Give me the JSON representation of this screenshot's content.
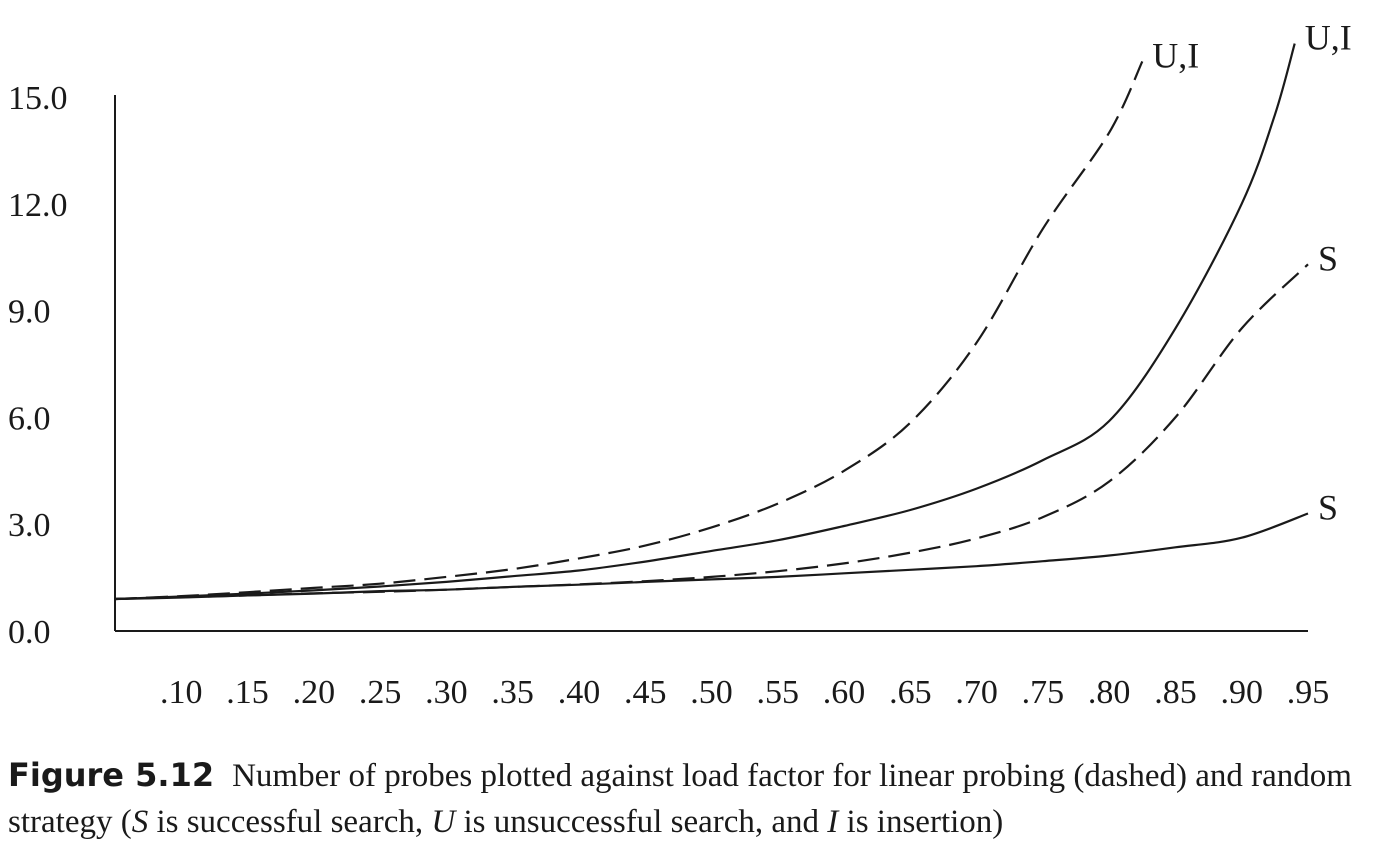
{
  "chart_data": {
    "type": "line",
    "title": "",
    "xlabel": "",
    "ylabel": "",
    "xlim": [
      0.05,
      0.95
    ],
    "ylim": [
      0,
      15
    ],
    "x_ticks": [
      0.1,
      0.15,
      0.2,
      0.25,
      0.3,
      0.35,
      0.4,
      0.45,
      0.5,
      0.55,
      0.6,
      0.65,
      0.7,
      0.75,
      0.8,
      0.85,
      0.9,
      0.95
    ],
    "x_tick_labels": [
      ".10",
      ".15",
      ".20",
      ".25",
      ".30",
      ".35",
      ".40",
      ".45",
      ".50",
      ".55",
      ".60",
      ".65",
      ".70",
      ".75",
      ".80",
      ".85",
      ".90",
      ".95"
    ],
    "y_ticks": [
      0,
      3,
      6,
      9,
      12,
      15
    ],
    "y_tick_labels": [
      "0.0",
      "3.0",
      "6.0",
      "9.0",
      "12.0",
      "15.0"
    ],
    "grid": false,
    "legend": "none",
    "series": [
      {
        "name": "U,I",
        "style": "dashed",
        "x": [
          0.05,
          0.1,
          0.15,
          0.2,
          0.25,
          0.3,
          0.35,
          0.4,
          0.45,
          0.5,
          0.55,
          0.6,
          0.65,
          0.7,
          0.75,
          0.8,
          0.825
        ],
        "y": [
          0.9,
          0.98,
          1.09,
          1.21,
          1.33,
          1.52,
          1.74,
          2.04,
          2.4,
          2.91,
          3.58,
          4.5,
          5.85,
          8.1,
          11.3,
          14.0,
          16.0
        ]
      },
      {
        "name": "U,I",
        "style": "solid",
        "x": [
          0.05,
          0.1,
          0.15,
          0.2,
          0.25,
          0.3,
          0.35,
          0.4,
          0.45,
          0.5,
          0.55,
          0.6,
          0.65,
          0.7,
          0.75,
          0.8,
          0.85,
          0.9,
          0.925,
          0.94
        ],
        "y": [
          0.9,
          0.97,
          1.05,
          1.14,
          1.25,
          1.38,
          1.54,
          1.7,
          1.95,
          2.25,
          2.55,
          2.95,
          3.4,
          4.0,
          4.8,
          5.9,
          8.5,
          12.0,
          14.5,
          16.5
        ]
      },
      {
        "name": "S",
        "style": "dashed",
        "x": [
          0.05,
          0.1,
          0.15,
          0.2,
          0.25,
          0.3,
          0.35,
          0.4,
          0.45,
          0.5,
          0.55,
          0.6,
          0.65,
          0.7,
          0.75,
          0.8,
          0.85,
          0.9,
          0.95
        ],
        "y": [
          0.9,
          0.95,
          1.0,
          1.06,
          1.1,
          1.16,
          1.24,
          1.31,
          1.4,
          1.52,
          1.68,
          1.9,
          2.2,
          2.6,
          3.2,
          4.2,
          6.0,
          8.5,
          10.3
        ]
      },
      {
        "name": "S",
        "style": "solid",
        "x": [
          0.05,
          0.1,
          0.15,
          0.2,
          0.25,
          0.3,
          0.35,
          0.4,
          0.45,
          0.5,
          0.55,
          0.6,
          0.65,
          0.7,
          0.75,
          0.8,
          0.85,
          0.9,
          0.95
        ],
        "y": [
          0.9,
          0.94,
          1.0,
          1.05,
          1.12,
          1.16,
          1.24,
          1.3,
          1.38,
          1.45,
          1.52,
          1.62,
          1.72,
          1.82,
          1.96,
          2.12,
          2.35,
          2.62,
          3.3
        ]
      }
    ]
  },
  "caption": {
    "figure_label": "Figure 5.12",
    "segments": [
      {
        "text": "Number of probes plotted against load factor for linear probing (dashed) and random strategy (",
        "italic": false
      },
      {
        "text": "S",
        "italic": true
      },
      {
        "text": " is successful search, ",
        "italic": false
      },
      {
        "text": "U",
        "italic": true
      },
      {
        "text": " is unsuccessful search, and ",
        "italic": false
      },
      {
        "text": "I",
        "italic": true
      },
      {
        "text": " is insertion)",
        "italic": false
      }
    ]
  }
}
